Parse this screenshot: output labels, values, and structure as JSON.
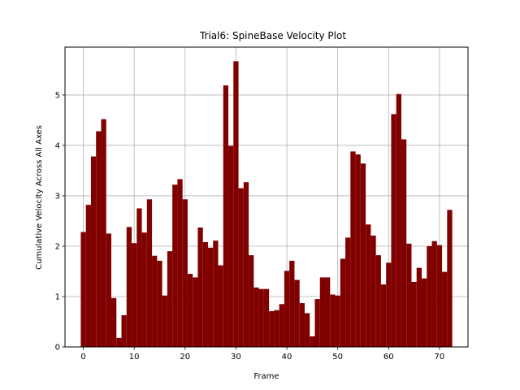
{
  "chart_data": {
    "type": "bar",
    "title": "Trial6: SpineBase Velocity Plot",
    "xlabel": "Frame",
    "ylabel": "Cumulative Velocity Across All Axes",
    "xlim": [
      -3.6,
      75.6
    ],
    "ylim": [
      0,
      5.95
    ],
    "xticks": [
      0,
      10,
      20,
      30,
      40,
      50,
      60,
      70
    ],
    "yticks": [
      0,
      1,
      2,
      3,
      4,
      5
    ],
    "grid": true,
    "bar_color": "#800000",
    "x": [
      0,
      1,
      2,
      3,
      4,
      5,
      6,
      7,
      8,
      9,
      10,
      11,
      12,
      13,
      14,
      15,
      16,
      17,
      18,
      19,
      20,
      21,
      22,
      23,
      24,
      25,
      26,
      27,
      28,
      29,
      30,
      31,
      32,
      33,
      34,
      35,
      36,
      37,
      38,
      39,
      40,
      41,
      42,
      43,
      44,
      45,
      46,
      47,
      48,
      49,
      50,
      51,
      52,
      53,
      54,
      55,
      56,
      57,
      58,
      59,
      60,
      61,
      62,
      63,
      64,
      65,
      66,
      67,
      68,
      69,
      70,
      71,
      72
    ],
    "values": [
      2.28,
      2.82,
      3.78,
      4.28,
      4.52,
      2.25,
      0.97,
      0.18,
      0.63,
      2.38,
      2.06,
      2.75,
      2.27,
      2.93,
      1.81,
      1.71,
      1.02,
      1.9,
      3.22,
      3.33,
      2.93,
      1.45,
      1.38,
      2.37,
      2.08,
      1.97,
      2.11,
      1.62,
      5.19,
      3.99,
      5.67,
      3.15,
      3.27,
      1.82,
      1.18,
      1.15,
      1.15,
      0.71,
      0.73,
      0.85,
      1.51,
      1.71,
      1.33,
      0.87,
      0.67,
      0.21,
      0.95,
      1.38,
      1.38,
      1.04,
      1.02,
      1.75,
      2.17,
      3.88,
      3.82,
      3.64,
      2.43,
      2.21,
      1.82,
      1.24,
      1.67,
      4.62,
      5.02,
      4.12,
      2.05,
      1.29,
      1.57,
      1.36,
      2.0,
      2.1,
      2.02,
      1.49,
      2.72
    ]
  }
}
